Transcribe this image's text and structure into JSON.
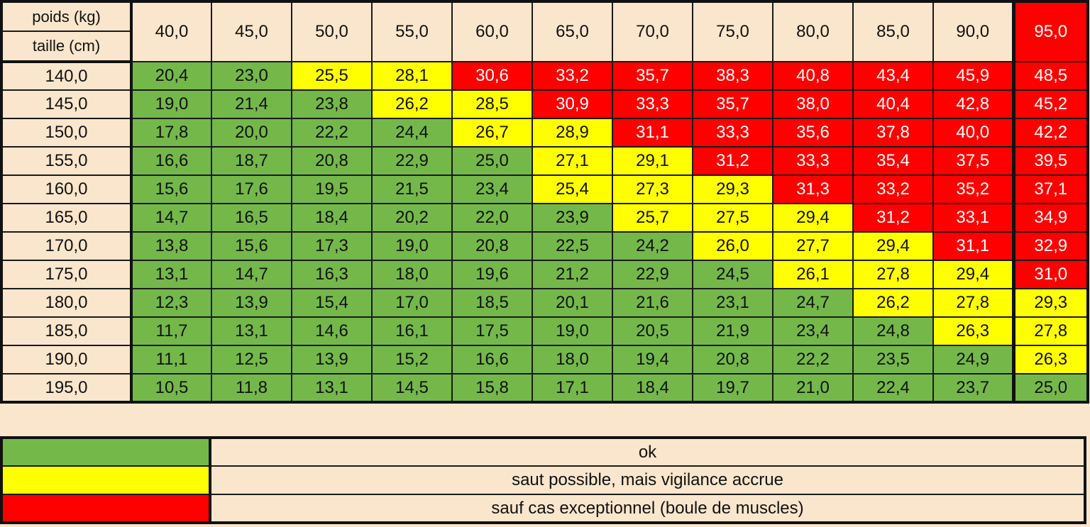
{
  "header": {
    "weight_label": "poids (kg)",
    "height_label": "taille (cm)"
  },
  "colors": {
    "ok": "#74b84a",
    "warn": "#ffff00",
    "bad": "#ff0000",
    "background": "#fae6cc"
  },
  "chart_data": {
    "type": "heatmap",
    "x_label": "poids (kg)",
    "y_label": "taille (cm)",
    "columns": [
      "40,0",
      "45,0",
      "50,0",
      "55,0",
      "60,0",
      "65,0",
      "70,0",
      "75,0",
      "80,0",
      "85,0",
      "90,0",
      "95,0"
    ],
    "column_status": [
      "",
      "",
      "",
      "",
      "",
      "",
      "",
      "",
      "",
      "",
      "",
      "bad"
    ],
    "rows": [
      {
        "height": "140,0",
        "values": [
          "20,4",
          "23,0",
          "25,5",
          "28,1",
          "30,6",
          "33,2",
          "35,7",
          "38,3",
          "40,8",
          "43,4",
          "45,9",
          "48,5"
        ],
        "status": [
          "ok",
          "ok",
          "warn",
          "warn",
          "bad",
          "bad",
          "bad",
          "bad",
          "bad",
          "bad",
          "bad",
          "bad"
        ]
      },
      {
        "height": "145,0",
        "values": [
          "19,0",
          "21,4",
          "23,8",
          "26,2",
          "28,5",
          "30,9",
          "33,3",
          "35,7",
          "38,0",
          "40,4",
          "42,8",
          "45,2"
        ],
        "status": [
          "ok",
          "ok",
          "ok",
          "warn",
          "warn",
          "bad",
          "bad",
          "bad",
          "bad",
          "bad",
          "bad",
          "bad"
        ]
      },
      {
        "height": "150,0",
        "values": [
          "17,8",
          "20,0",
          "22,2",
          "24,4",
          "26,7",
          "28,9",
          "31,1",
          "33,3",
          "35,6",
          "37,8",
          "40,0",
          "42,2"
        ],
        "status": [
          "ok",
          "ok",
          "ok",
          "ok",
          "warn",
          "warn",
          "bad",
          "bad",
          "bad",
          "bad",
          "bad",
          "bad"
        ]
      },
      {
        "height": "155,0",
        "values": [
          "16,6",
          "18,7",
          "20,8",
          "22,9",
          "25,0",
          "27,1",
          "29,1",
          "31,2",
          "33,3",
          "35,4",
          "37,5",
          "39,5"
        ],
        "status": [
          "ok",
          "ok",
          "ok",
          "ok",
          "ok",
          "warn",
          "warn",
          "bad",
          "bad",
          "bad",
          "bad",
          "bad"
        ]
      },
      {
        "height": "160,0",
        "values": [
          "15,6",
          "17,6",
          "19,5",
          "21,5",
          "23,4",
          "25,4",
          "27,3",
          "29,3",
          "31,3",
          "33,2",
          "35,2",
          "37,1"
        ],
        "status": [
          "ok",
          "ok",
          "ok",
          "ok",
          "ok",
          "warn",
          "warn",
          "warn",
          "bad",
          "bad",
          "bad",
          "bad"
        ]
      },
      {
        "height": "165,0",
        "values": [
          "14,7",
          "16,5",
          "18,4",
          "20,2",
          "22,0",
          "23,9",
          "25,7",
          "27,5",
          "29,4",
          "31,2",
          "33,1",
          "34,9"
        ],
        "status": [
          "ok",
          "ok",
          "ok",
          "ok",
          "ok",
          "ok",
          "warn",
          "warn",
          "warn",
          "bad",
          "bad",
          "bad"
        ]
      },
      {
        "height": "170,0",
        "values": [
          "13,8",
          "15,6",
          "17,3",
          "19,0",
          "20,8",
          "22,5",
          "24,2",
          "26,0",
          "27,7",
          "29,4",
          "31,1",
          "32,9"
        ],
        "status": [
          "ok",
          "ok",
          "ok",
          "ok",
          "ok",
          "ok",
          "ok",
          "warn",
          "warn",
          "warn",
          "bad",
          "bad"
        ]
      },
      {
        "height": "175,0",
        "values": [
          "13,1",
          "14,7",
          "16,3",
          "18,0",
          "19,6",
          "21,2",
          "22,9",
          "24,5",
          "26,1",
          "27,8",
          "29,4",
          "31,0"
        ],
        "status": [
          "ok",
          "ok",
          "ok",
          "ok",
          "ok",
          "ok",
          "ok",
          "ok",
          "warn",
          "warn",
          "warn",
          "bad"
        ]
      },
      {
        "height": "180,0",
        "values": [
          "12,3",
          "13,9",
          "15,4",
          "17,0",
          "18,5",
          "20,1",
          "21,6",
          "23,1",
          "24,7",
          "26,2",
          "27,8",
          "29,3"
        ],
        "status": [
          "ok",
          "ok",
          "ok",
          "ok",
          "ok",
          "ok",
          "ok",
          "ok",
          "ok",
          "warn",
          "warn",
          "warn"
        ]
      },
      {
        "height": "185,0",
        "values": [
          "11,7",
          "13,1",
          "14,6",
          "16,1",
          "17,5",
          "19,0",
          "20,5",
          "21,9",
          "23,4",
          "24,8",
          "26,3",
          "27,8"
        ],
        "status": [
          "ok",
          "ok",
          "ok",
          "ok",
          "ok",
          "ok",
          "ok",
          "ok",
          "ok",
          "ok",
          "warn",
          "warn"
        ]
      },
      {
        "height": "190,0",
        "values": [
          "11,1",
          "12,5",
          "13,9",
          "15,2",
          "16,6",
          "18,0",
          "19,4",
          "20,8",
          "22,2",
          "23,5",
          "24,9",
          "26,3"
        ],
        "status": [
          "ok",
          "ok",
          "ok",
          "ok",
          "ok",
          "ok",
          "ok",
          "ok",
          "ok",
          "ok",
          "ok",
          "warn"
        ]
      },
      {
        "height": "195,0",
        "values": [
          "10,5",
          "11,8",
          "13,1",
          "14,5",
          "15,8",
          "17,1",
          "18,4",
          "19,7",
          "21,0",
          "22,4",
          "23,7",
          "25,0"
        ],
        "status": [
          "ok",
          "ok",
          "ok",
          "ok",
          "ok",
          "ok",
          "ok",
          "ok",
          "ok",
          "ok",
          "ok",
          "ok"
        ]
      }
    ]
  },
  "legend": [
    {
      "status": "ok",
      "label": "ok"
    },
    {
      "status": "warn",
      "label": "saut possible, mais vigilance accrue"
    },
    {
      "status": "bad",
      "label": "sauf cas exceptionnel (boule de muscles)"
    }
  ]
}
